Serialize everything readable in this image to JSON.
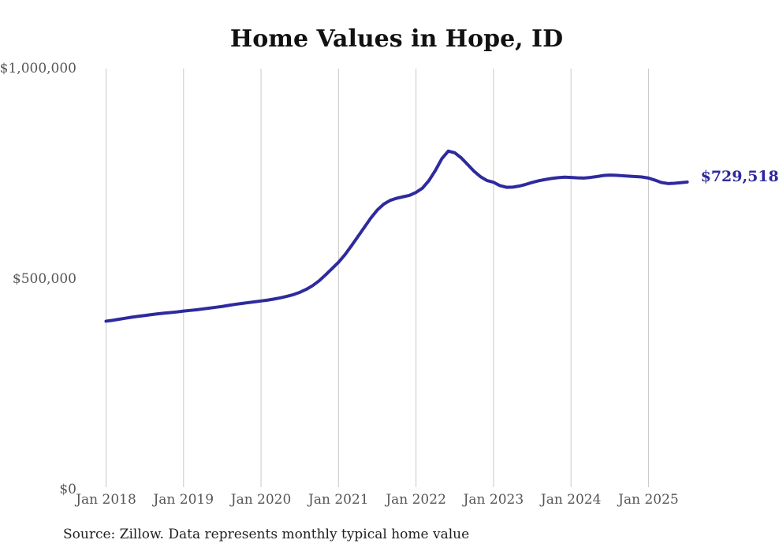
{
  "colors": {
    "background": "#ffffff",
    "line": "#2e2a9e",
    "grid": "#c9c9c9",
    "axis_text": "#565656",
    "title_text": "#111111",
    "source_text": "#1f1f1f"
  },
  "source_note": "Source: Zillow. Data represents monthly typical home value",
  "chart_data": {
    "type": "line",
    "title": "Home Values in Hope, ID",
    "xlabel": "",
    "ylabel": "",
    "ylim": [
      0,
      1000000
    ],
    "grid": "vertical-only",
    "legend": "none",
    "x_tick_labels": [
      "Jan 2018",
      "Jan 2019",
      "Jan 2020",
      "Jan 2021",
      "Jan 2022",
      "Jan 2023",
      "Jan 2024",
      "Jan 2025"
    ],
    "y_ticks": [
      {
        "value": 0,
        "label": "$0"
      },
      {
        "value": 500000,
        "label": "$500,000"
      },
      {
        "value": 1000000,
        "label": "$1,000,000"
      }
    ],
    "months_per_x_tick": 12,
    "series": [
      {
        "name": "Monthly typical home value",
        "start": "Jan 2018",
        "frequency": "monthly",
        "values": [
          399000,
          401000,
          403500,
          406000,
          408500,
          410500,
          412500,
          414500,
          416500,
          418000,
          419500,
          421000,
          423000,
          424500,
          426000,
          428000,
          430000,
          432000,
          434000,
          436500,
          439000,
          441000,
          443000,
          445000,
          447000,
          449000,
          451500,
          454500,
          458000,
          462000,
          467500,
          474500,
          483500,
          495000,
          509000,
          524000,
          539000,
          557000,
          578000,
          600000,
          622000,
          644000,
          663000,
          677000,
          686000,
          691000,
          694500,
          698000,
          705000,
          715000,
          733000,
          757000,
          785000,
          803000,
          799000,
          787000,
          771000,
          755000,
          742000,
          733000,
          729000,
          721000,
          717000,
          717500,
          720000,
          724000,
          728500,
          732500,
          735500,
          738000,
          740000,
          741000,
          740500,
          739500,
          739000,
          740500,
          742500,
          745000,
          746000,
          745500,
          744500,
          743500,
          742500,
          741500,
          739000,
          734000,
          728500,
          726000,
          726500,
          728000,
          729518
        ],
        "end_value": 729518,
        "end_value_label": "$729,518"
      }
    ]
  }
}
